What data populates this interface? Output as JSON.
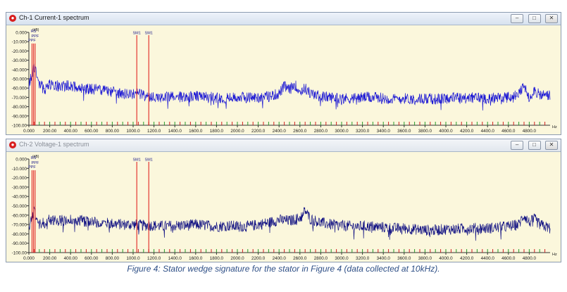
{
  "caption": "Figure 4: Stator wedge signature for the stator in Figure 4 (data collected at 10kHz).",
  "colors": {
    "trace1": "#1a16d4",
    "trace2": "#141484",
    "marker": "#e01010",
    "plot_bg": "#fbf7dc"
  },
  "windows": [
    {
      "title": "Ch-1 Current-1 spectrum",
      "active": true,
      "buttons": {
        "minimize": "–",
        "maximize": "□",
        "close": "✕"
      }
    },
    {
      "title": "Ch-2 Voltage-1 spectrum",
      "active": false,
      "buttons": {
        "minimize": "–",
        "maximize": "□",
        "close": "✕"
      }
    }
  ],
  "chart_data": [
    {
      "type": "line",
      "xlim": [
        0,
        5000
      ],
      "ylim": [
        -100,
        0
      ],
      "ylabel": "(dB)",
      "xlabel": "Hz",
      "x_ticks": [
        "0.000",
        "200.00",
        "400.00",
        "600.00",
        "800.00",
        "1000.0",
        "1200.0",
        "1400.0",
        "1600.0",
        "1800.0",
        "2000.0",
        "2200.0",
        "2400.0",
        "2600.0",
        "2800.0",
        "3000.0",
        "3200.0",
        "3400.0",
        "3600.0",
        "3800.0",
        "4000.0",
        "4200.0",
        "4400.0",
        "4600.0",
        "4800.0"
      ],
      "y_ticks": [
        "0.000",
        "-10.000",
        "-20.000",
        "-30.000",
        "-40.000",
        "-50.000",
        "-60.000",
        "-70.000",
        "-80.000",
        "-90.000",
        "-100.00"
      ],
      "markers": [
        {
          "label": "RS",
          "x": 45,
          "y": -12
        },
        {
          "label": "PPF",
          "x": 30,
          "y": -12
        },
        {
          "label": "PPF",
          "x": 60,
          "y": -12
        },
        {
          "label": "SM1",
          "x": 1035,
          "y": -3
        },
        {
          "label": "SM1",
          "x": 1150,
          "y": -3
        }
      ],
      "series": [
        {
          "x": [
            0,
            50,
            100,
            150,
            200,
            300,
            400,
            500,
            600,
            700,
            800,
            900,
            1000,
            1040,
            1100,
            1150,
            1200,
            1300,
            1400,
            1500,
            1600,
            1700,
            1800,
            1900,
            2000,
            2100,
            2200,
            2300,
            2400,
            2450,
            2500,
            2550,
            2600,
            2650,
            2700,
            2800,
            2900,
            3000,
            3100,
            3200,
            3300,
            3400,
            3500,
            3600,
            3700,
            3800,
            3900,
            4000,
            4100,
            4200,
            4300,
            4400,
            4500,
            4600,
            4700,
            4750,
            4800,
            4850,
            4900,
            4950,
            5000
          ],
          "y": [
            -58,
            -37,
            -55,
            -62,
            -56,
            -58,
            -57,
            -60,
            -61,
            -62,
            -64,
            -66,
            -67,
            -64,
            -68,
            -70,
            -69,
            -70,
            -69,
            -70,
            -69,
            -70,
            -70,
            -71,
            -70,
            -70,
            -70,
            -69,
            -66,
            -58,
            -62,
            -56,
            -64,
            -60,
            -66,
            -69,
            -70,
            -71,
            -71,
            -70,
            -70,
            -71,
            -72,
            -71,
            -72,
            -71,
            -72,
            -71,
            -70,
            -71,
            -70,
            -71,
            -70,
            -70,
            -67,
            -58,
            -70,
            -62,
            -68,
            -67,
            -68
          ]
        }
      ]
    },
    {
      "type": "line",
      "xlim": [
        0,
        5000
      ],
      "ylim": [
        -100,
        0
      ],
      "ylabel": "(dB)",
      "xlabel": "Hz",
      "x_ticks": [
        "0.000",
        "200.00",
        "400.00",
        "600.00",
        "800.00",
        "1000.0",
        "1200.0",
        "1400.0",
        "1600.0",
        "1800.0",
        "2000.0",
        "2200.0",
        "2400.0",
        "2600.0",
        "2800.0",
        "3000.0",
        "3200.0",
        "3400.0",
        "3600.0",
        "3800.0",
        "4000.0",
        "4200.0",
        "4400.0",
        "4600.0",
        "4800.0"
      ],
      "y_ticks": [
        "0.000",
        "-10.000",
        "-20.000",
        "-30.000",
        "-40.000",
        "-50.000",
        "-60.000",
        "-70.000",
        "-80.000",
        "-90.000",
        "-100.00"
      ],
      "markers": [
        {
          "label": "RS",
          "x": 45,
          "y": -12
        },
        {
          "label": "PPF",
          "x": 30,
          "y": -12
        },
        {
          "label": "PPF",
          "x": 60,
          "y": -12
        },
        {
          "label": "SM1",
          "x": 1035,
          "y": -3
        },
        {
          "label": "SM1",
          "x": 1150,
          "y": -3
        }
      ],
      "series": [
        {
          "x": [
            0,
            50,
            100,
            150,
            200,
            300,
            400,
            500,
            600,
            700,
            800,
            900,
            1000,
            1100,
            1200,
            1300,
            1400,
            1500,
            1600,
            1700,
            1800,
            1900,
            2000,
            2100,
            2200,
            2300,
            2400,
            2500,
            2600,
            2650,
            2700,
            2800,
            2900,
            3000,
            3100,
            3200,
            3300,
            3400,
            3500,
            3600,
            3700,
            3800,
            3900,
            4000,
            4100,
            4200,
            4300,
            4400,
            4500,
            4600,
            4700,
            4750,
            4800,
            4850,
            4900,
            4950,
            5000
          ],
          "y": [
            -75,
            -55,
            -70,
            -68,
            -64,
            -66,
            -64,
            -66,
            -67,
            -68,
            -69,
            -70,
            -70,
            -71,
            -71,
            -72,
            -71,
            -71,
            -70,
            -71,
            -72,
            -71,
            -72,
            -72,
            -70,
            -68,
            -65,
            -66,
            -63,
            -55,
            -64,
            -68,
            -70,
            -71,
            -72,
            -72,
            -72,
            -73,
            -74,
            -74,
            -75,
            -76,
            -76,
            -75,
            -75,
            -74,
            -74,
            -74,
            -73,
            -72,
            -70,
            -60,
            -68,
            -64,
            -70,
            -72,
            -74
          ]
        }
      ]
    }
  ]
}
